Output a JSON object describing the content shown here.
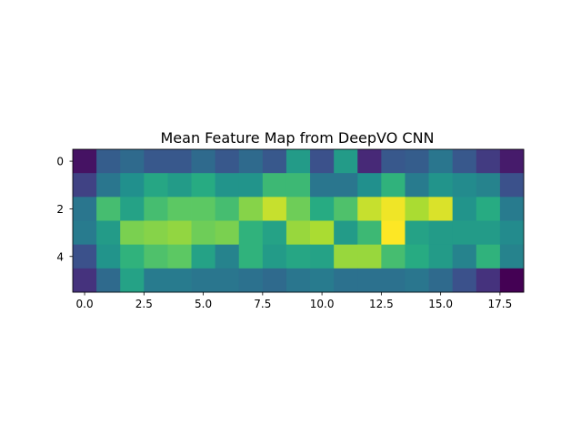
{
  "chart_data": {
    "type": "heatmap",
    "title": "Mean Feature Map from DeepVO CNN",
    "colormap": "viridis",
    "xlim": [
      -0.5,
      18.5
    ],
    "ylim": [
      5.5,
      -0.5
    ],
    "xticks": [
      0.0,
      2.5,
      5.0,
      7.5,
      10.0,
      12.5,
      15.0,
      17.5
    ],
    "xtick_labels": [
      "0.0",
      "2.5",
      "5.0",
      "7.5",
      "10.0",
      "12.5",
      "15.0",
      "17.5"
    ],
    "yticks": [
      0,
      2,
      4
    ],
    "ytick_labels": [
      "0",
      "2",
      "4"
    ],
    "grid": false,
    "legend": "none",
    "value_scale": "normalized 0 (darkest) to 1 (brightest)",
    "values": [
      [
        0.05,
        0.3,
        0.35,
        0.28,
        0.28,
        0.35,
        0.28,
        0.35,
        0.28,
        0.55,
        0.25,
        0.55,
        0.12,
        0.28,
        0.3,
        0.4,
        0.28,
        0.18,
        0.08
      ],
      [
        0.2,
        0.4,
        0.5,
        0.6,
        0.55,
        0.62,
        0.52,
        0.52,
        0.68,
        0.68,
        0.4,
        0.4,
        0.5,
        0.65,
        0.42,
        0.52,
        0.48,
        0.45,
        0.25
      ],
      [
        0.4,
        0.7,
        0.58,
        0.7,
        0.75,
        0.75,
        0.7,
        0.82,
        0.92,
        0.78,
        0.62,
        0.72,
        0.92,
        0.98,
        0.88,
        0.95,
        0.52,
        0.62,
        0.42
      ],
      [
        0.42,
        0.55,
        0.8,
        0.82,
        0.84,
        0.78,
        0.8,
        0.65,
        0.58,
        0.85,
        0.88,
        0.55,
        0.68,
        1.0,
        0.58,
        0.55,
        0.55,
        0.55,
        0.48
      ],
      [
        0.25,
        0.52,
        0.65,
        0.72,
        0.75,
        0.58,
        0.45,
        0.65,
        0.55,
        0.6,
        0.58,
        0.85,
        0.85,
        0.7,
        0.62,
        0.55,
        0.45,
        0.65,
        0.45
      ],
      [
        0.15,
        0.35,
        0.58,
        0.42,
        0.42,
        0.4,
        0.4,
        0.38,
        0.35,
        0.4,
        0.42,
        0.38,
        0.38,
        0.38,
        0.4,
        0.35,
        0.25,
        0.15,
        0.0
      ]
    ]
  }
}
